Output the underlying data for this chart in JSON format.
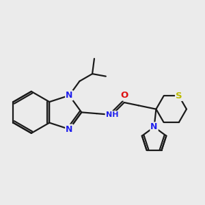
{
  "bg_color": "#ebebeb",
  "bond_color": "#1a1a1a",
  "bond_width": 1.6,
  "atom_colors": {
    "N": "#2020ee",
    "O": "#dd1111",
    "S": "#bbbb00",
    "H": "#6699aa",
    "C": "#1a1a1a"
  },
  "font_size": 8.5,
  "figsize": [
    3.0,
    3.0
  ],
  "dpi": 100
}
